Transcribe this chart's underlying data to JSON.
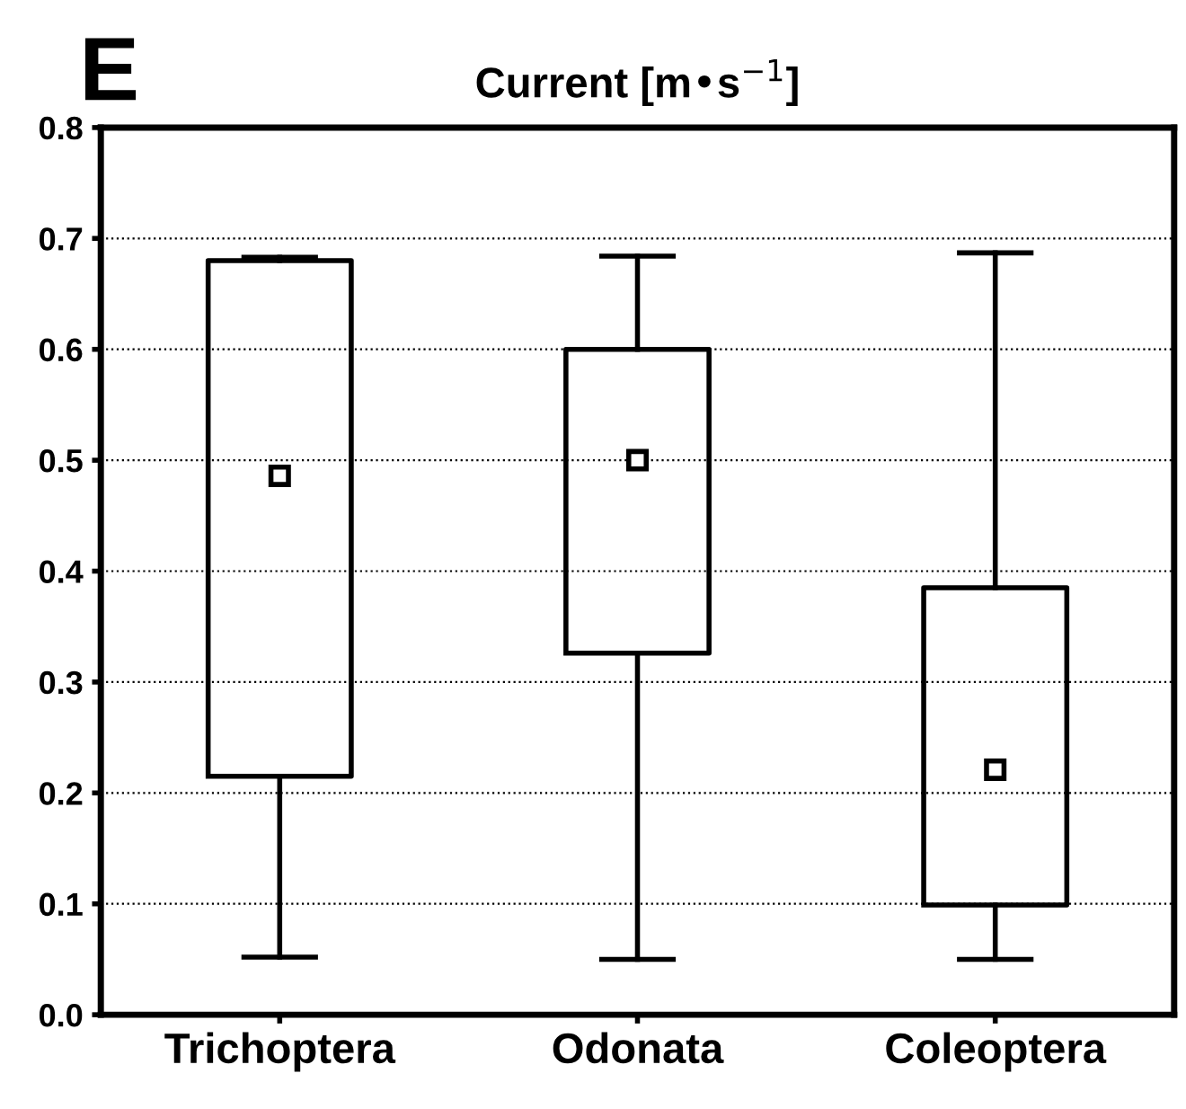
{
  "chart_data": {
    "type": "box",
    "title": "Current [m•s$^{−1}$]",
    "annotations": [
      "E"
    ],
    "categories": [
      "Trichoptera",
      "Odonata",
      "Coleoptera"
    ],
    "boxes": [
      {
        "low": 0.052,
        "q1": 0.215,
        "median": 0.486,
        "q3": 0.68,
        "high": 0.683
      },
      {
        "low": 0.05,
        "q1": 0.326,
        "median": 0.5,
        "q3": 0.6,
        "high": 0.684
      },
      {
        "low": 0.05,
        "q1": 0.099,
        "median": 0.221,
        "q3": 0.385,
        "high": 0.687
      }
    ],
    "ylim": [
      0,
      0.8
    ],
    "yticks": [
      {
        "value": 0,
        "label": "0.0"
      },
      0.1,
      0.2,
      0.3,
      0.4,
      0.5,
      0.6,
      0.7,
      0.8
    ],
    "grid": "y",
    "marker": "square"
  }
}
